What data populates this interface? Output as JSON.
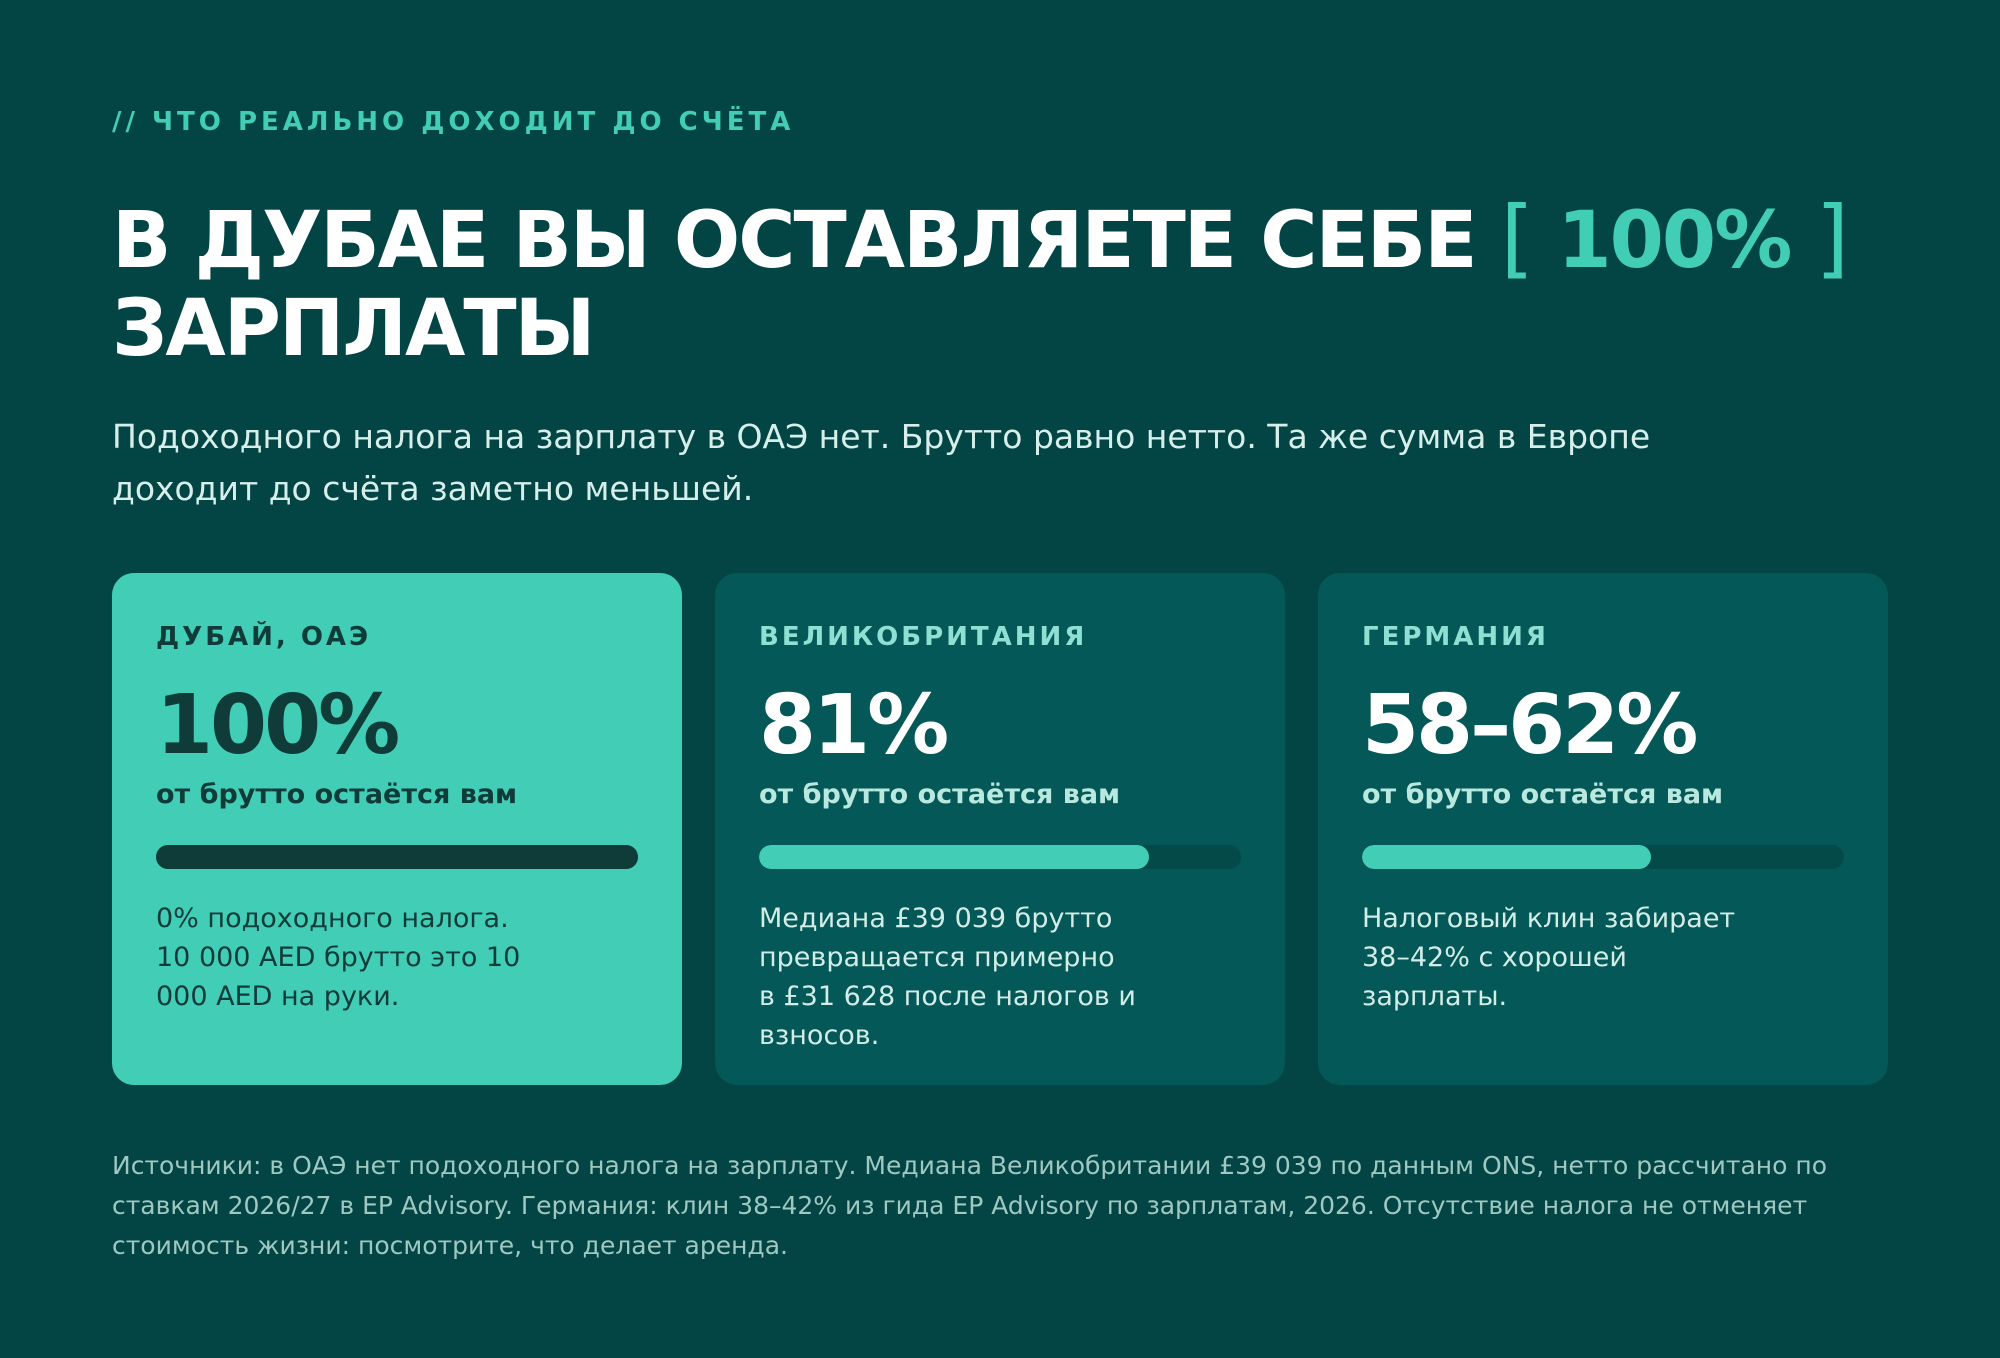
{
  "eyebrow": "// ЧТО РЕАЛЬНО ДОХОДИТ ДО СЧЁТА",
  "headline": {
    "before": "В ДУБАЕ ВЫ ОСТАВЛЯЕТЕ СЕБЕ",
    "bracket_open": "[",
    "accent": "100%",
    "bracket_close": "]",
    "after": "ЗАРПЛАТЫ"
  },
  "lead": "Подоходного налога на зарплату в ОАЭ нет. Брутто равно нетто. Та же сумма в Европе доходит до счёта заметно меньшей.",
  "cards": [
    {
      "region": "ДУБАЙ, ОАЭ",
      "value": "100%",
      "subtitle": "от брутто остаётся вам",
      "retained_fraction": 1.0,
      "note": "0% подоходного налога. 10 000 AED брутто это 10 000 AED на руки."
    },
    {
      "region": "ВЕЛИКОБРИТАНИЯ",
      "value": "81%",
      "subtitle": "от брутто остаётся вам",
      "retained_fraction": 0.81,
      "note": "Медиана £39 039 брутто превращается примерно в £31 628 после налогов и взносов."
    },
    {
      "region": "ГЕРМАНИЯ",
      "value": "58–62%",
      "subtitle": "от брутто остаётся вам",
      "retained_fraction": 0.6,
      "note": "Налоговый клин забирает 38–42% с хорошей зарплаты."
    }
  ],
  "sources": "Источники: в ОАЭ нет подоходного налога на зарплату. Медиана Великобритании £39 039 по данным ONS, нетто рассчитано по ставкам 2026/27 в EP Advisory. Германия: клин 38–42% из гида EP Advisory по зарплатам, 2026. Отсутствие налога не отменяет стоимость жизни: посмотрите, что делает аренда.",
  "colors": {
    "background": "#034545",
    "card": "#045857",
    "accent": "#42cdb7",
    "dark_text": "#0f3b38"
  }
}
